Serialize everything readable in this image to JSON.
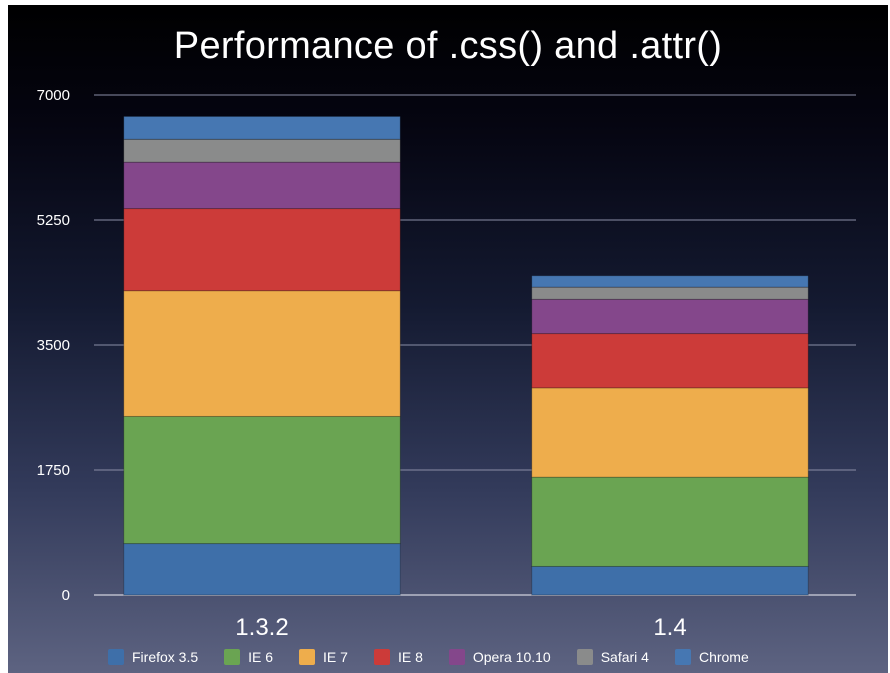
{
  "chart_data": {
    "type": "bar",
    "stacked": true,
    "title": "Performance of .css() and .attr()",
    "categories": [
      "1.3.2",
      "1.4"
    ],
    "ylim": [
      0,
      7000
    ],
    "yticks": [
      0,
      1750,
      3500,
      5250,
      7000
    ],
    "grid": true,
    "legend_position": "bottom",
    "series": [
      {
        "name": "Firefox 3.5",
        "color": "#3e6fa9",
        "values": [
          720,
          400
        ]
      },
      {
        "name": "IE 6",
        "color": "#6aa452",
        "values": [
          1780,
          1250
        ]
      },
      {
        "name": "IE 7",
        "color": "#eead4c",
        "values": [
          1760,
          1250
        ]
      },
      {
        "name": "IE 8",
        "color": "#cc3b39",
        "values": [
          1150,
          760
        ]
      },
      {
        "name": "Opera 10.10",
        "color": "#84478b",
        "values": [
          650,
          480
        ]
      },
      {
        "name": "Safari 4",
        "color": "#8a8b8b",
        "values": [
          320,
          170
        ]
      },
      {
        "name": "Chrome",
        "color": "#4677b2",
        "values": [
          320,
          160
        ]
      }
    ]
  }
}
